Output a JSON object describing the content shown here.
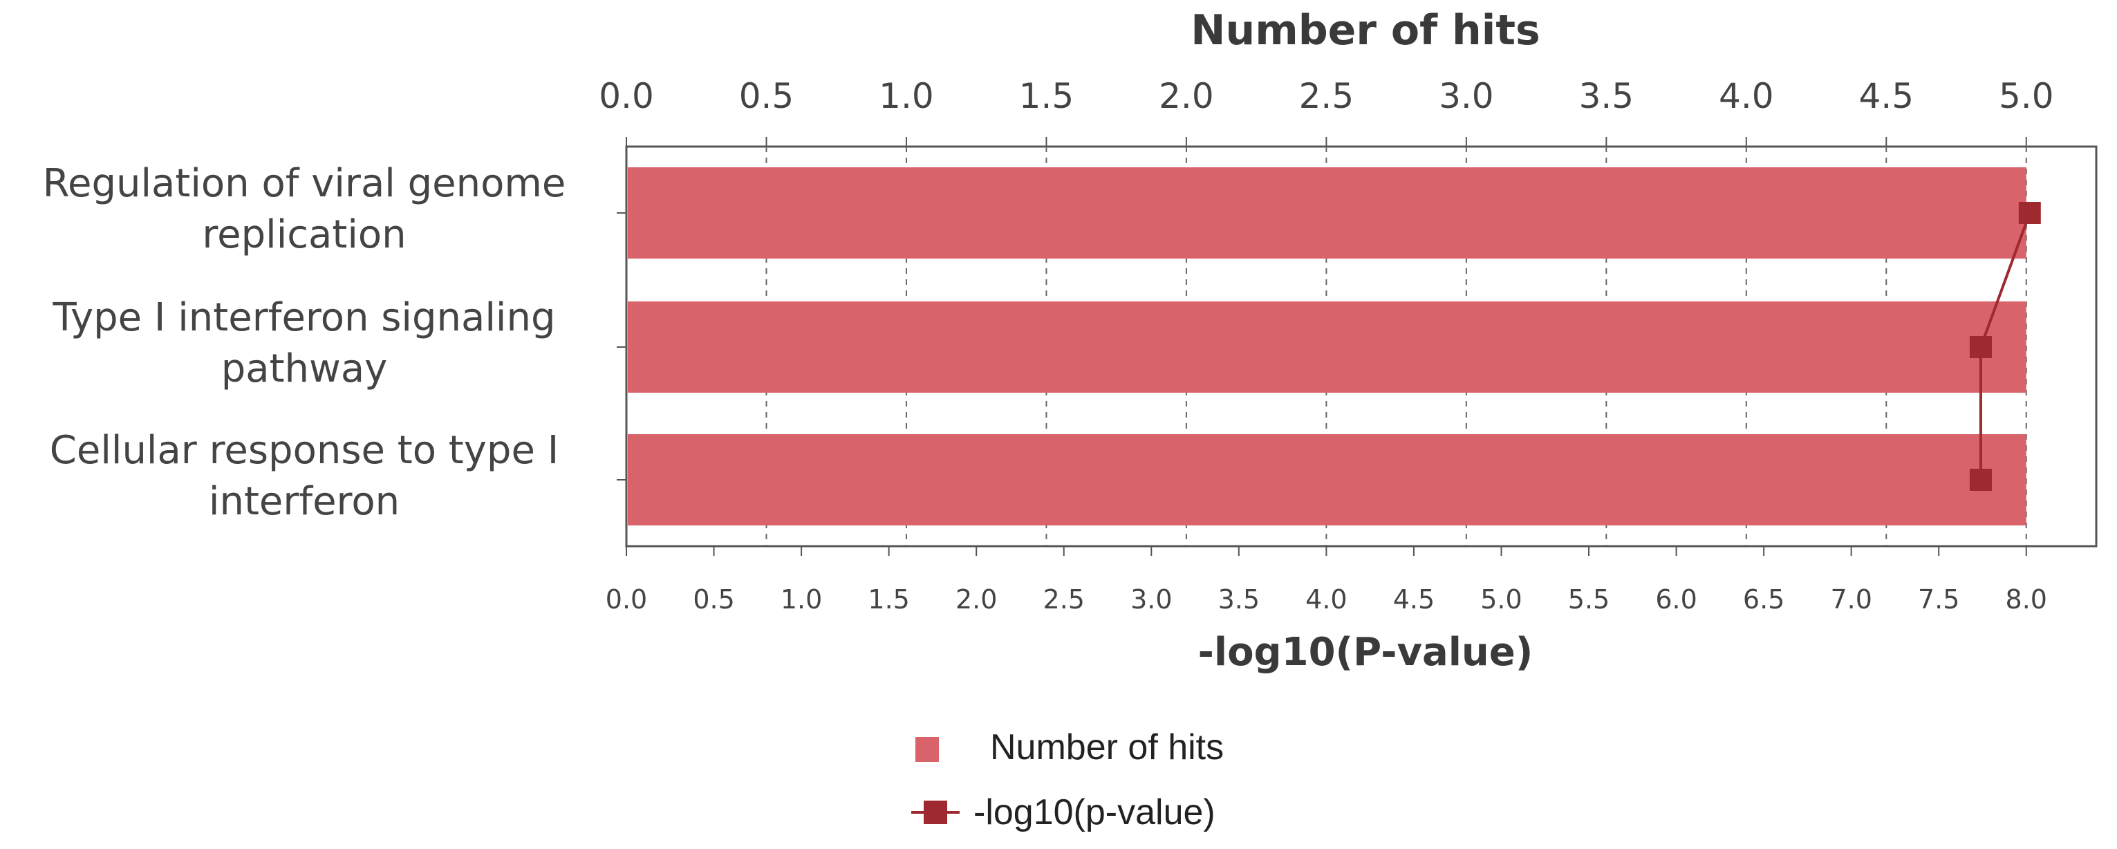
{
  "chart_data": {
    "type": "bar",
    "orientation": "horizontal",
    "categories": [
      [
        "Regulation of viral genome",
        "replication"
      ],
      [
        "Type I interferon signaling",
        "pathway"
      ],
      [
        "Cellular response to type I",
        "interferon"
      ]
    ],
    "series": [
      {
        "name": "Number of hits",
        "type": "bar",
        "axis": "top",
        "values": [
          5,
          5,
          5
        ],
        "color": "#d9636b"
      },
      {
        "name": "-log10(p-value)",
        "type": "line",
        "axis": "bottom",
        "values": [
          8.02,
          7.74,
          7.74
        ],
        "color": "#9e2a2f"
      }
    ],
    "top_axis": {
      "title": "Number of hits",
      "range": [
        0,
        5.25
      ],
      "ticks": [
        "0.0",
        "0.5",
        "1.0",
        "1.5",
        "2.0",
        "2.5",
        "3.0",
        "3.5",
        "4.0",
        "4.5",
        "5.0"
      ]
    },
    "bottom_axis": {
      "title": "-log10(P-value)",
      "range": [
        0,
        8.4
      ],
      "ticks": [
        "0.0",
        "0.5",
        "1.0",
        "1.5",
        "2.0",
        "2.5",
        "3.0",
        "3.5",
        "4.0",
        "4.5",
        "5.0",
        "5.5",
        "6.0",
        "6.5",
        "7.0",
        "7.5",
        "8.0"
      ]
    },
    "grid": true,
    "legend": {
      "position": "bottom-center",
      "items": [
        "Number of hits",
        "-log10(p-value)"
      ]
    }
  }
}
